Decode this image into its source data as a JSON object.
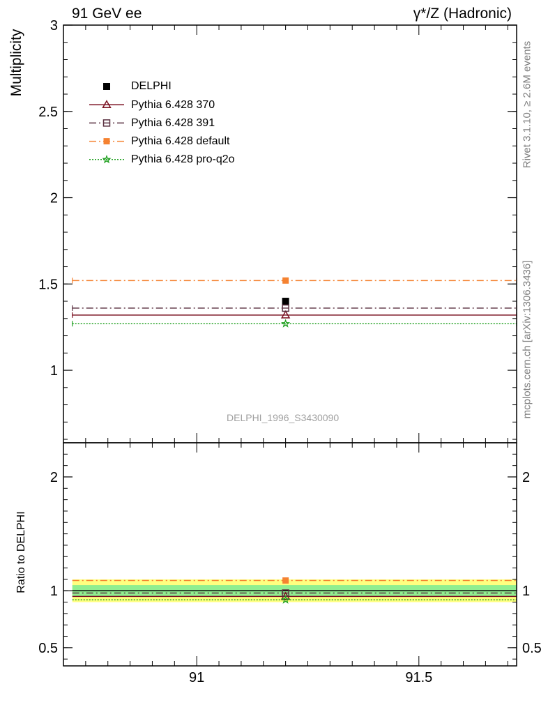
{
  "header": {
    "left_title": "91 GeV ee",
    "right_title": "γ*/Z (Hadronic)"
  },
  "side_text": {
    "rivet": "Rivet 3.1.10, ≥ 2.6M events",
    "mcplots": "mcplots.cern.ch [arXiv:1306.3436]"
  },
  "watermark": "DELPHI_1996_S3430090",
  "chart_data": [
    {
      "type": "line",
      "panel": "main",
      "ylabel": "Multiplicity",
      "xlim": [
        90.7,
        91.72
      ],
      "ylim": [
        0.58,
        3.0
      ],
      "y_ticks": [
        {
          "value": 1,
          "label": "1"
        },
        {
          "value": 1.5,
          "label": "1.5"
        },
        {
          "value": 2,
          "label": "2"
        },
        {
          "value": 2.5,
          "label": "2.5"
        },
        {
          "value": 3,
          "label": "3"
        }
      ],
      "x_ticks": [
        {
          "value": 91,
          "label": "91"
        },
        {
          "value": 91.5,
          "label": "91.5"
        }
      ],
      "legend_position": "top-left",
      "bin": [
        90.72,
        91.72
      ],
      "x_center": 91.2,
      "series": [
        {
          "name": "DELPHI",
          "style": "data",
          "color": "#000000",
          "marker": "square",
          "y": 1.4
        },
        {
          "name": "Pythia 6.428 370",
          "style": "solid",
          "color": "#7a1020",
          "marker": "triangle-open",
          "y": 1.32
        },
        {
          "name": "Pythia 6.428 391",
          "style": "dashdot",
          "color": "#5a3040",
          "marker": "square-open",
          "y": 1.36
        },
        {
          "name": "Pythia 6.428 default",
          "style": "dashdot",
          "color": "#f58231",
          "marker": "square",
          "y": 1.52
        },
        {
          "name": "Pythia 6.428 pro-q2o",
          "style": "dotted",
          "color": "#20a020",
          "marker": "star-open",
          "y": 1.27
        }
      ]
    },
    {
      "type": "line",
      "panel": "ratio",
      "ylabel": "Ratio to DELPHI",
      "xlim": [
        90.7,
        91.72
      ],
      "ylim": [
        0.34,
        2.3
      ],
      "y_ticks": [
        {
          "value": 0.5,
          "label": "0.5"
        },
        {
          "value": 1,
          "label": "1"
        },
        {
          "value": 2,
          "label": "2"
        }
      ],
      "x_ticks": [
        {
          "value": 91,
          "label": "91"
        },
        {
          "value": 91.5,
          "label": "91.5"
        }
      ],
      "bands": [
        {
          "name": "stat",
          "low": 0.95,
          "high": 1.05,
          "color": "#90ee90"
        },
        {
          "name": "total",
          "low": 0.9,
          "high": 1.1,
          "color": "#ffff80"
        }
      ],
      "series": [
        {
          "name": "Pythia 6.428 370",
          "y": 0.95
        },
        {
          "name": "Pythia 6.428 391",
          "y": 0.98
        },
        {
          "name": "Pythia 6.428 default",
          "y": 1.09
        },
        {
          "name": "Pythia 6.428 pro-q2o",
          "y": 0.92
        }
      ]
    }
  ]
}
